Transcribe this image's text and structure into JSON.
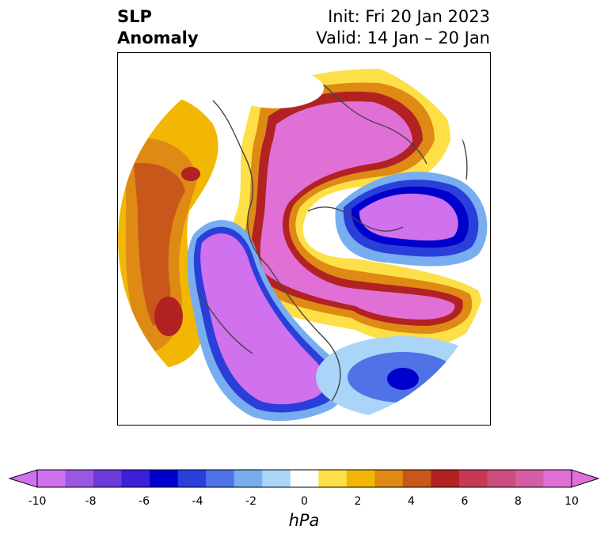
{
  "header": {
    "title_line1": "SLP",
    "title_line2": "Anomaly",
    "init_text": "Init: Fri 20 Jan 2023",
    "valid_text": "Valid: 14 Jan – 20 Jan"
  },
  "map": {
    "projection": "north polar stereographic",
    "field": "sea level pressure anomaly"
  },
  "colorbar": {
    "unit": "hPa",
    "ticks": [
      "-10",
      "-8",
      "-6",
      "-4",
      "-2",
      "0",
      "2",
      "4",
      "6",
      "8",
      "10"
    ],
    "levels": [
      -10,
      -9,
      -8,
      -7,
      -6,
      -5,
      -4,
      -3,
      -2,
      -1,
      1,
      2,
      3,
      4,
      5,
      6,
      7,
      8,
      9,
      10
    ],
    "colors": [
      "#d071ee",
      "#9c57e0",
      "#6a3bd8",
      "#3a20d6",
      "#0000cd",
      "#2a3fda",
      "#4f73e6",
      "#78aef0",
      "#aad5f8",
      "#ffffff",
      "#fde047",
      "#f2b705",
      "#de8a14",
      "#c8571c",
      "#b22222",
      "#c43a54",
      "#cc4d80",
      "#d45ea3",
      "#e070d6"
    ],
    "extend": "both"
  }
}
